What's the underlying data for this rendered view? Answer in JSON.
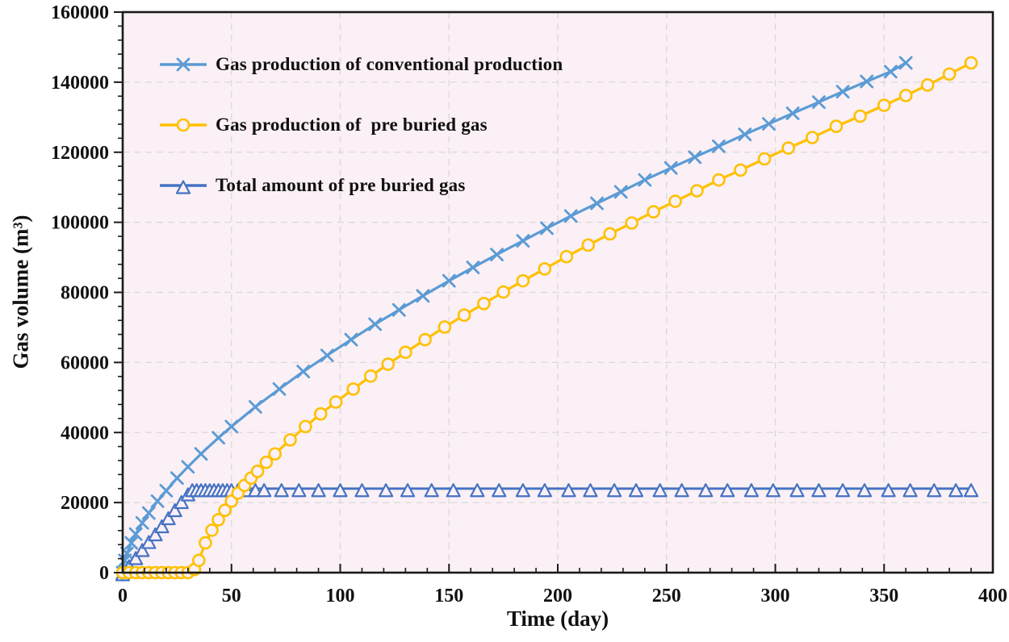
{
  "chart_data": {
    "type": "line",
    "title": "",
    "xlabel": "Time (day)",
    "ylabel": "Gas volume (m³)",
    "xlim": [
      0,
      400
    ],
    "ylim": [
      0,
      160000
    ],
    "x_major_ticks": [
      0,
      50,
      100,
      150,
      200,
      250,
      300,
      350,
      400
    ],
    "x_tick_labels": [
      "0",
      "50",
      "100",
      "150",
      "200",
      "250",
      "300",
      "350",
      "400"
    ],
    "x_minor_step": 10,
    "y_major_ticks": [
      0,
      20000,
      40000,
      60000,
      80000,
      100000,
      120000,
      140000,
      160000
    ],
    "y_tick_labels": [
      "0",
      "20000",
      "40000",
      "60000",
      "80000",
      "100000",
      "120000",
      "140000",
      "160000"
    ],
    "y_minor_step": 4000,
    "grid": "dashed gridlines at major ticks, both axes",
    "legend_position": "inside top-left",
    "style": {
      "plot_bg": "#FAF0F5",
      "grid_color": "#DCD7DB",
      "axis_color": "#1A1A1A",
      "text_color": "#111111"
    },
    "series": [
      {
        "name": "Gas production of conventional production",
        "color": "#5B9BD5",
        "marker": "x",
        "line_width": 3.2,
        "points": [
          [
            0,
            0
          ],
          [
            1,
            3500
          ],
          [
            2,
            5500
          ],
          [
            4,
            8500
          ],
          [
            6,
            11000
          ],
          [
            9,
            14200
          ],
          [
            12,
            17000
          ],
          [
            16,
            20400
          ],
          [
            20,
            23400
          ],
          [
            25,
            27000
          ],
          [
            30,
            30200
          ],
          [
            36,
            33900
          ],
          [
            44,
            38500
          ],
          [
            50,
            41700
          ],
          [
            61,
            47300
          ],
          [
            72,
            52400
          ],
          [
            83,
            57400
          ],
          [
            94,
            62000
          ],
          [
            105,
            66500
          ],
          [
            116,
            70900
          ],
          [
            127,
            75000
          ],
          [
            138,
            79000
          ],
          [
            150,
            83300
          ],
          [
            161,
            87100
          ],
          [
            172,
            90800
          ],
          [
            184,
            94700
          ],
          [
            195,
            98300
          ],
          [
            206,
            101800
          ],
          [
            218,
            105400
          ],
          [
            229,
            108700
          ],
          [
            240,
            112100
          ],
          [
            252,
            115500
          ],
          [
            263,
            118600
          ],
          [
            274,
            121700
          ],
          [
            286,
            125100
          ],
          [
            297,
            128100
          ],
          [
            308,
            131100
          ],
          [
            320,
            134300
          ],
          [
            331,
            137300
          ],
          [
            342,
            140200
          ],
          [
            353,
            143000
          ],
          [
            360,
            145500
          ]
        ]
      },
      {
        "name": "Gas production of  pre buried gas",
        "color": "#FFC000",
        "marker": "circle",
        "line_width": 3.2,
        "points": [
          [
            0,
            0
          ],
          [
            3,
            0
          ],
          [
            6,
            0
          ],
          [
            9,
            0
          ],
          [
            12,
            0
          ],
          [
            15,
            0
          ],
          [
            18,
            0
          ],
          [
            21,
            0
          ],
          [
            24,
            0
          ],
          [
            27,
            0
          ],
          [
            30,
            0
          ],
          [
            33,
            900
          ],
          [
            35,
            3500
          ],
          [
            38,
            8500
          ],
          [
            41,
            12100
          ],
          [
            44,
            15100
          ],
          [
            47,
            17800
          ],
          [
            50,
            20400
          ],
          [
            53,
            22700
          ],
          [
            56,
            24900
          ],
          [
            59,
            27000
          ],
          [
            62,
            28900
          ],
          [
            66,
            31500
          ],
          [
            70,
            33900
          ],
          [
            77,
            37900
          ],
          [
            84,
            41700
          ],
          [
            91,
            45300
          ],
          [
            98,
            48700
          ],
          [
            106,
            52400
          ],
          [
            114,
            56100
          ],
          [
            122,
            59500
          ],
          [
            130,
            62900
          ],
          [
            139,
            66500
          ],
          [
            148,
            70100
          ],
          [
            157,
            73500
          ],
          [
            166,
            76800
          ],
          [
            175,
            80100
          ],
          [
            184,
            83300
          ],
          [
            194,
            86700
          ],
          [
            204,
            90200
          ],
          [
            214,
            93500
          ],
          [
            224,
            96700
          ],
          [
            234,
            99800
          ],
          [
            244,
            103000
          ],
          [
            254,
            106000
          ],
          [
            264,
            109000
          ],
          [
            274,
            112100
          ],
          [
            284,
            114900
          ],
          [
            295,
            118100
          ],
          [
            306,
            121200
          ],
          [
            317,
            124200
          ],
          [
            328,
            127400
          ],
          [
            339,
            130300
          ],
          [
            350,
            133400
          ],
          [
            360,
            136200
          ],
          [
            370,
            139200
          ],
          [
            380,
            142300
          ],
          [
            390,
            145500
          ]
        ]
      },
      {
        "name": "Total amount of pre buried gas",
        "color": "#4472C4",
        "marker": "triangle",
        "line_width": 2.8,
        "points": [
          [
            0,
            0
          ],
          [
            3,
            2300
          ],
          [
            6,
            4600
          ],
          [
            9,
            6900
          ],
          [
            12,
            9200
          ],
          [
            15,
            11400
          ],
          [
            18,
            13700
          ],
          [
            21,
            16000
          ],
          [
            24,
            18300
          ],
          [
            27,
            20600
          ],
          [
            30,
            22800
          ],
          [
            32,
            24000
          ],
          [
            34,
            24000
          ],
          [
            36,
            24000
          ],
          [
            38,
            24000
          ],
          [
            40,
            24000
          ],
          [
            42,
            24000
          ],
          [
            44,
            24000
          ],
          [
            46,
            24000
          ],
          [
            48,
            24000
          ],
          [
            50,
            24000
          ],
          [
            53,
            24000
          ],
          [
            57,
            24000
          ],
          [
            61,
            24000
          ],
          [
            65,
            24000
          ],
          [
            73,
            24000
          ],
          [
            81,
            24000
          ],
          [
            90,
            24000
          ],
          [
            100,
            24000
          ],
          [
            110,
            24000
          ],
          [
            121,
            24000
          ],
          [
            131,
            24000
          ],
          [
            142,
            24000
          ],
          [
            152,
            24000
          ],
          [
            163,
            24000
          ],
          [
            173,
            24000
          ],
          [
            184,
            24000
          ],
          [
            194,
            24000
          ],
          [
            205,
            24000
          ],
          [
            215,
            24000
          ],
          [
            226,
            24000
          ],
          [
            236,
            24000
          ],
          [
            247,
            24000
          ],
          [
            257,
            24000
          ],
          [
            268,
            24000
          ],
          [
            278,
            24000
          ],
          [
            289,
            24000
          ],
          [
            299,
            24000
          ],
          [
            310,
            24000
          ],
          [
            320,
            24000
          ],
          [
            331,
            24000
          ],
          [
            341,
            24000
          ],
          [
            352,
            24000
          ],
          [
            362,
            24000
          ],
          [
            373,
            24000
          ],
          [
            383,
            24000
          ],
          [
            390,
            24000
          ]
        ]
      }
    ],
    "render_order": [
      0,
      2,
      1
    ]
  },
  "legend": {
    "items": [
      {
        "label": "Gas production of conventional production",
        "marker": "x-marker-icon"
      },
      {
        "label": "Gas production of  pre buried gas",
        "marker": "circle-marker-icon"
      },
      {
        "label": "Total amount of pre buried gas",
        "marker": "triangle-marker-icon"
      }
    ]
  }
}
